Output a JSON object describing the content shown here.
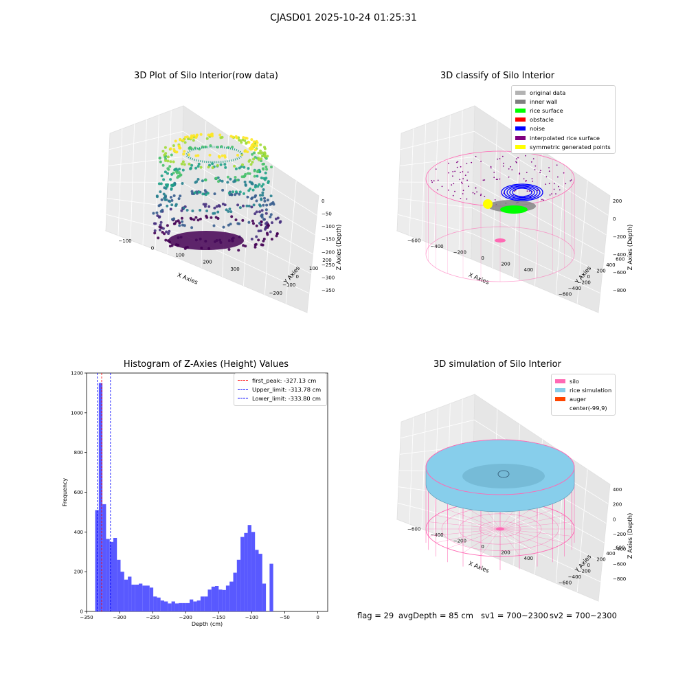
{
  "figure": {
    "suptitle": "CJASD01 2025-10-24 01:25:31",
    "footer": {
      "flag": "flag = 29",
      "avg_depth": "avgDepth = 85 cm",
      "sv1": "sv1 = 700~2300",
      "sv2": "sv2 = 700~2300"
    }
  },
  "colors": {
    "histogram_bar": "#5050ff",
    "first_peak_line": "#ff0000",
    "limit_line": "#0000ff",
    "silo": "#ff69b4",
    "rice_simulation": "#87ceeb",
    "auger": "#ff4500",
    "original_data": "#b3b3b3",
    "inner_wall": "#808080",
    "rice_surface": "#00ff00",
    "obstacle": "#ff0000",
    "noise": "#0000ff",
    "interpolated_rice_surface": "#800080",
    "symmetric_generated_points": "#ffff00"
  },
  "chart_data": [
    {
      "type": "scatter",
      "title": "3D Plot of Silo Interior(row data)",
      "xlabel": "X Axies",
      "ylabel": "Y Axies",
      "zlabel": "Z Axies (Depth)",
      "xticks": [
        "−100",
        "0",
        "100",
        "200",
        "300"
      ],
      "yticks": [
        "−200",
        "−100",
        "0",
        "100",
        "200"
      ],
      "zticks": [
        "0",
        "−50",
        "−100",
        "−150",
        "−200",
        "−250",
        "−300",
        "−350"
      ],
      "zlim": [
        -350,
        0
      ]
    },
    {
      "type": "scatter",
      "title": "3D classify of Silo Interior",
      "xlabel": "X Axies",
      "ylabel": "Y Axies",
      "zlabel": "Z Axies (Depth)",
      "xticks": [
        "−600",
        "−400",
        "−200",
        "0",
        "200",
        "400"
      ],
      "yticks": [
        "−600",
        "−400",
        "−200",
        "0",
        "200",
        "400",
        "600"
      ],
      "zticks": [
        "200",
        "0",
        "−200",
        "−400",
        "−600",
        "−800"
      ],
      "legend": [
        "original data",
        "inner wall",
        "rice surface",
        "obstacle",
        "noise",
        "interpolated rice surface",
        "symmetric generated points"
      ],
      "legend_position": "top-right"
    },
    {
      "type": "bar",
      "title": "Histogram of Z-Axies (Height) Values",
      "xlabel": "Depth (cm)",
      "ylabel": "Frequency",
      "xlim": [
        -350,
        15
      ],
      "ylim": [
        0,
        1200
      ],
      "xticks": [
        -350,
        -300,
        -250,
        -200,
        -150,
        -100,
        -50,
        0
      ],
      "yticks": [
        0,
        200,
        400,
        600,
        800,
        1000,
        1200
      ],
      "bin_start": -337,
      "bin_width": 5.5,
      "values": [
        510,
        1150,
        540,
        365,
        350,
        370,
        260,
        200,
        160,
        175,
        135,
        135,
        140,
        130,
        130,
        120,
        75,
        70,
        55,
        50,
        40,
        50,
        40,
        42,
        42,
        42,
        60,
        50,
        55,
        75,
        75,
        110,
        125,
        128,
        110,
        108,
        130,
        150,
        195,
        260,
        375,
        395,
        435,
        400,
        310,
        290,
        140,
        0,
        240
      ],
      "vlines": [
        {
          "label": "first_peak: -327.13 cm",
          "x": -327.13,
          "style": "peak"
        },
        {
          "label": "Upper_limit: -313.78 cm",
          "x": -313.78,
          "style": "limit"
        },
        {
          "label": "Lower_limit: -333.80 cm",
          "x": -333.8,
          "style": "limit"
        }
      ],
      "legend_position": "top-right"
    },
    {
      "type": "area",
      "title": "3D simulation of Silo Interior",
      "xlabel": "X Axies",
      "ylabel": "Y Axies",
      "zlabel": "Z Axies (Depth)",
      "xticks": [
        "−600",
        "−400",
        "−200",
        "0",
        "200",
        "400"
      ],
      "yticks": [
        "−600",
        "−400",
        "−200",
        "0",
        "200",
        "400",
        "600"
      ],
      "zticks": [
        "400",
        "200",
        "0",
        "−200",
        "−400",
        "−600",
        "−800"
      ],
      "legend": [
        "silo",
        "rice simulation",
        "auger",
        "center(-99,9)"
      ],
      "legend_position": "top-right"
    }
  ]
}
